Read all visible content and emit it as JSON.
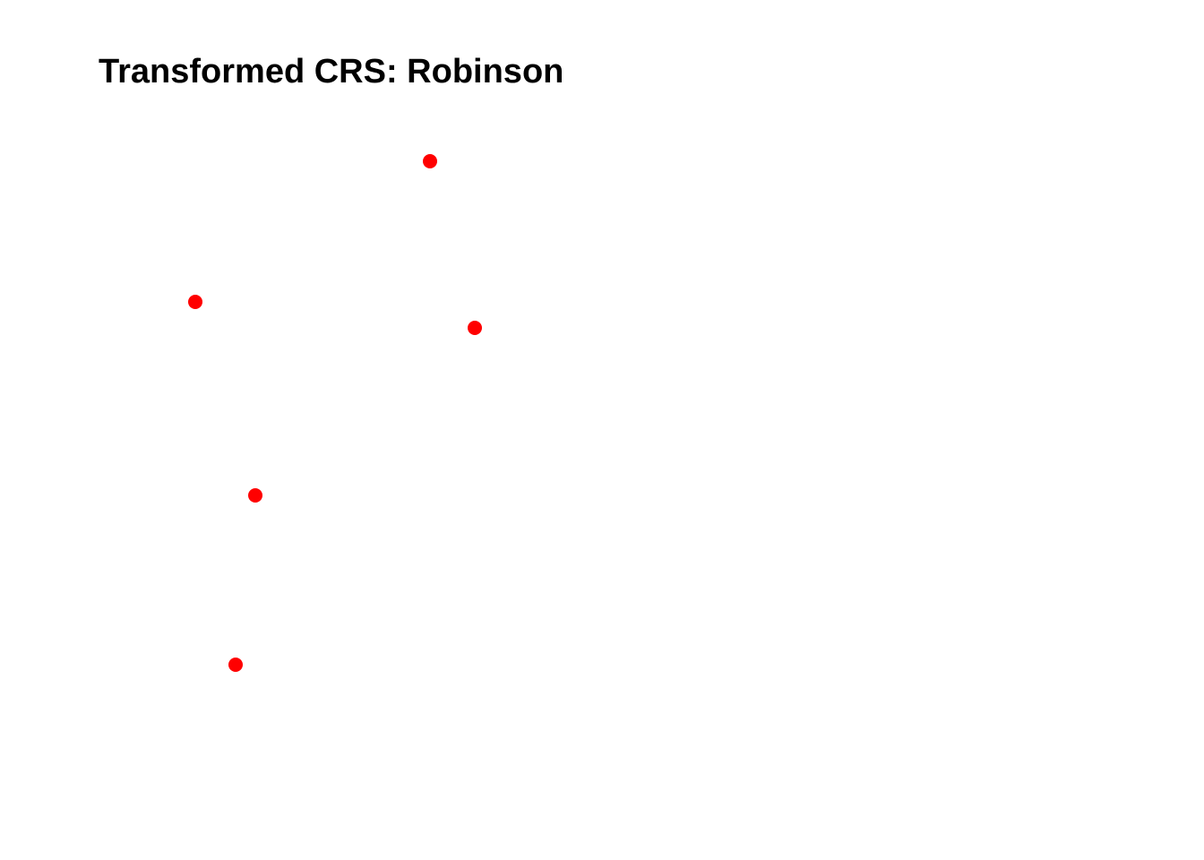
{
  "map": {
    "title": "Transformed CRS: Robinson",
    "point_color": "#ff0000",
    "background_color": "#ffffff",
    "points": [
      {
        "id": "point-1"
      },
      {
        "id": "point-2"
      },
      {
        "id": "point-3"
      },
      {
        "id": "point-4"
      },
      {
        "id": "point-5"
      }
    ]
  }
}
